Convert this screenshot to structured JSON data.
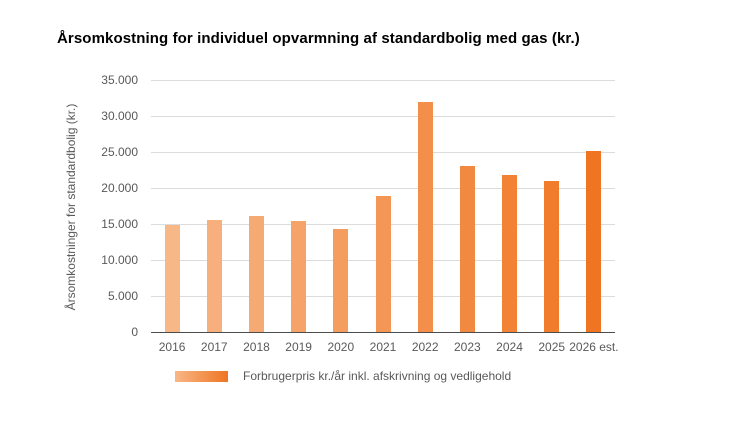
{
  "chart_data": {
    "type": "bar",
    "title": "Årsomkostning for individuel opvarmning af standardbolig med gas (kr.)",
    "ylabel": "Årsomkostninger for standardbolig (kr.)",
    "xlabel": "",
    "categories": [
      "2016",
      "2017",
      "2018",
      "2019",
      "2020",
      "2021",
      "2022",
      "2023",
      "2024",
      "2025",
      "2026 est."
    ],
    "values": [
      14900,
      15500,
      16100,
      15400,
      14300,
      18900,
      32000,
      23000,
      21800,
      21000,
      25200
    ],
    "ylim": [
      0,
      35000
    ],
    "y_ticks": [
      {
        "value": 0,
        "label": "0"
      },
      {
        "value": 5000,
        "label": "5.000"
      },
      {
        "value": 10000,
        "label": "10.000"
      },
      {
        "value": 15000,
        "label": "15.000"
      },
      {
        "value": 20000,
        "label": "20.000"
      },
      {
        "value": 25000,
        "label": "25.000"
      },
      {
        "value": 30000,
        "label": "30.000"
      },
      {
        "value": 35000,
        "label": "35.000"
      }
    ],
    "grid": "horizontal",
    "legend_position": "bottom",
    "legend": {
      "label": "Forbrugerpris kr./år inkl. afskrivning og vedligehold",
      "gradient": [
        "#F8B787",
        "#EF7522"
      ]
    },
    "bar_colors": [
      "#F8B787",
      "#F7B07D",
      "#F6AA73",
      "#F5A369",
      "#F49D5F",
      "#F49655",
      "#F38F4A",
      "#F28940",
      "#F18236",
      "#F07C2C",
      "#EF7522"
    ],
    "colors": {
      "gridline": "#DCDCDC",
      "axis_line": "#4D4D4D",
      "axis_text": "#595959",
      "title_text": "#000000",
      "background": "#FFFFFF"
    }
  }
}
